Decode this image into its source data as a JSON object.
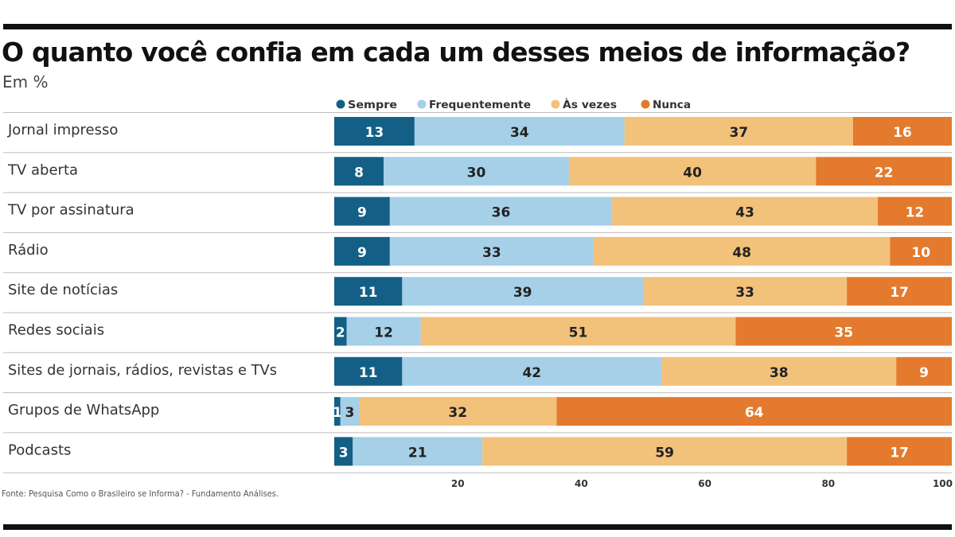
{
  "title": "O quanto você confia em cada um desses meios de informação?",
  "subtitle": "Em %",
  "source": "Fonte: Pesquisa Como o Brasileiro se Informa? - Fundamento Análises.",
  "colors": {
    "sempre": "#145f86",
    "frequentemente": "#a6cfe8",
    "as_vezes": "#f2c17a",
    "nunca": "#e37a2d"
  },
  "chart_data": {
    "type": "bar",
    "orientation": "horizontal",
    "stacked": true,
    "title": "O quanto você confia em cada um desses meios de informação?",
    "subtitle": "Em %",
    "xlim": [
      0,
      100
    ],
    "x_ticks": [
      20,
      40,
      60,
      80,
      100
    ],
    "grid": false,
    "legend_position": "top",
    "categories": [
      "Jornal impresso",
      "TV aberta",
      "TV por assinatura",
      "Rádio",
      "Site de notícias",
      "Redes sociais",
      "Sites de jornais, rádios, revistas e TVs",
      "Grupos de WhatsApp",
      "Podcasts"
    ],
    "series": [
      {
        "name": "Sempre",
        "color_key": "sempre",
        "values": [
          13,
          8,
          9,
          9,
          11,
          2,
          11,
          1,
          3
        ]
      },
      {
        "name": "Frequentemente",
        "color_key": "frequentemente",
        "values": [
          34,
          30,
          36,
          33,
          39,
          12,
          42,
          3,
          21
        ]
      },
      {
        "name": "Às vezes",
        "color_key": "as_vezes",
        "values": [
          37,
          40,
          43,
          48,
          33,
          51,
          38,
          32,
          59
        ]
      },
      {
        "name": "Nunca",
        "color_key": "nunca",
        "values": [
          16,
          22,
          12,
          10,
          17,
          35,
          9,
          64,
          17
        ]
      }
    ]
  }
}
